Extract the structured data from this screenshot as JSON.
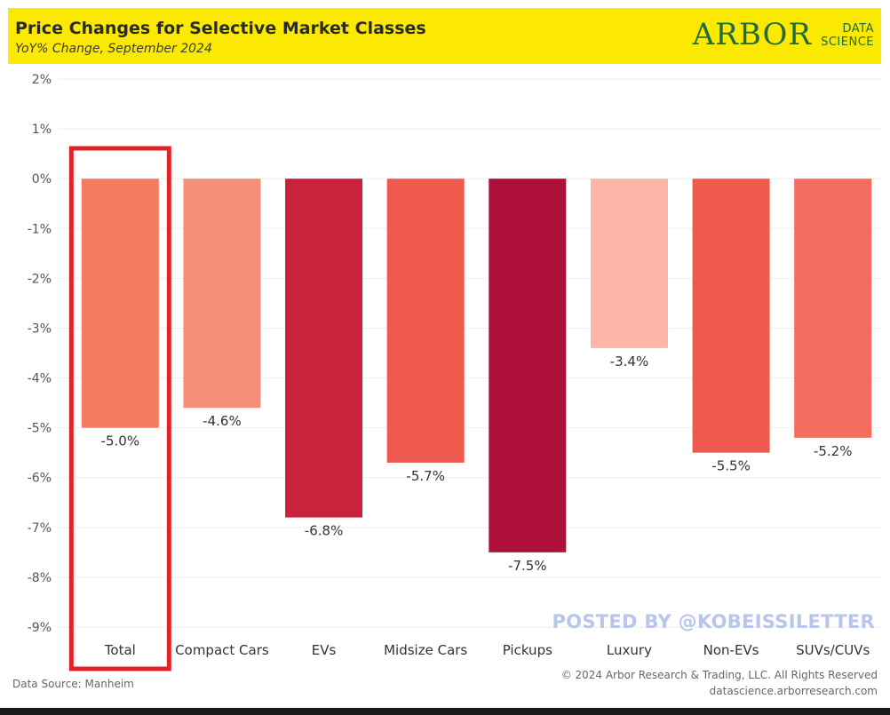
{
  "header": {
    "title": "Price Changes for Selective Market Classes",
    "subtitle": "YoY% Change, September 2024",
    "logo": {
      "main": "ARBOR",
      "sub1": "DATA",
      "sub2": "SCIENCE",
      "color": "#1f6b3a"
    },
    "background_color": "#fbe904"
  },
  "chart_data": {
    "type": "bar",
    "title": "Price Changes for Selective Market Classes",
    "subtitle": "YoY% Change, September 2024",
    "categories": [
      "Total",
      "Compact Cars",
      "EVs",
      "Midsize Cars",
      "Pickups",
      "Luxury",
      "Non-EVs",
      "SUVs/CUVs"
    ],
    "values": [
      -5.0,
      -4.6,
      -6.8,
      -5.7,
      -7.5,
      -3.4,
      -5.5,
      -5.2
    ],
    "data_labels": [
      "-5.0%",
      "-4.6%",
      "-6.8%",
      "-5.7%",
      "-7.5%",
      "-3.4%",
      "-5.5%",
      "-5.2%"
    ],
    "bar_colors": [
      "#f47a62",
      "#f68f78",
      "#c8223d",
      "#ef5a4f",
      "#ad1139",
      "#fbb6a8",
      "#ef5a4f",
      "#f46c5e"
    ],
    "y_ticks": [
      2,
      1,
      0,
      -1,
      -2,
      -3,
      -4,
      -5,
      -6,
      -7,
      -8,
      -9
    ],
    "y_tick_labels": [
      "2%",
      "1%",
      "0%",
      "-1%",
      "-2%",
      "-3%",
      "-4%",
      "-5%",
      "-6%",
      "-7%",
      "-8%",
      "-9%"
    ],
    "ylim": [
      -9,
      2
    ],
    "xlabel": "",
    "ylabel": "",
    "grid": true,
    "highlight_category": "Total",
    "highlight_color": "#e02327"
  },
  "footer": {
    "watermark": "POSTED BY @KOBEISSILETTER",
    "source": "Data Source: Manheim",
    "copyright": "© 2024 Arbor Research & Trading, LLC. All Rights Reserved",
    "website": "datascience.arborresearch.com"
  }
}
